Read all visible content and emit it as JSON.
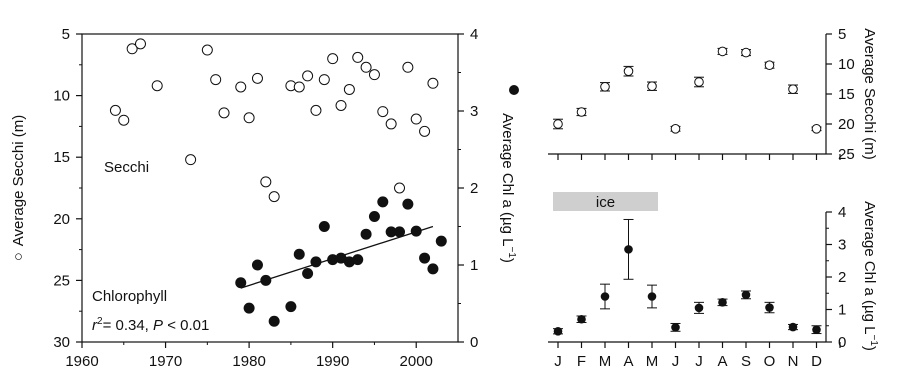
{
  "chart_data": [
    {
      "type": "scatter",
      "panel": "time-series",
      "xlim": [
        1960,
        2005
      ],
      "x_ticks": [
        1960,
        1970,
        1980,
        1990,
        2000
      ],
      "ylim_left": [
        30,
        5
      ],
      "y_ticks_left": [
        5,
        10,
        15,
        20,
        25,
        30
      ],
      "ylabel_left": "Average Secchi (m)",
      "ylabel_left_marker": "○",
      "ylim_right": [
        0,
        4
      ],
      "y_ticks_right": [
        0,
        1,
        2,
        3,
        4
      ],
      "ylabel_right": "Average Chl a (µg L",
      "ylabel_right_sup": "−1",
      "ylabel_right_close": ")",
      "ylabel_right_marker": "●",
      "annotations": {
        "secchi": "Secchi",
        "chlorophyll": "Chlorophyll",
        "stat_r": "r",
        "stat_r_sup": "2",
        "stat_mid": "= 0.34, ",
        "stat_p": "P",
        "stat_end": " < 0.01"
      },
      "series": [
        {
          "marker": "open-circle",
          "axis": "left",
          "x": [
            1964,
            1965,
            1966,
            1967,
            1969,
            1973,
            1975,
            1976,
            1977,
            1979,
            1980,
            1981,
            1982,
            1983,
            1985,
            1986,
            1987,
            1988,
            1989,
            1990,
            1991,
            1992,
            1993,
            1994,
            1995,
            1996,
            1997,
            1998,
            1999,
            2000,
            2001,
            2002
          ],
          "y": [
            11.2,
            12.0,
            6.2,
            5.8,
            9.2,
            15.2,
            6.3,
            8.7,
            11.4,
            9.3,
            11.8,
            8.6,
            17.0,
            18.2,
            9.2,
            9.3,
            8.4,
            11.2,
            8.7,
            7.0,
            10.8,
            9.5,
            6.9,
            7.7,
            8.3,
            11.3,
            12.3,
            17.5,
            7.7,
            11.9,
            12.9,
            9.0
          ]
        },
        {
          "marker": "filled-circle",
          "axis": "right",
          "x": [
            1979,
            1980,
            1981,
            1982,
            1983,
            1985,
            1986,
            1987,
            1988,
            1989,
            1990,
            1991,
            1992,
            1993,
            1994,
            1995,
            1996,
            1997,
            1998,
            1999,
            2000,
            2001,
            2002,
            2003
          ],
          "y": [
            0.77,
            0.44,
            1.0,
            0.8,
            0.27,
            0.46,
            1.14,
            0.89,
            1.04,
            1.5,
            1.07,
            1.09,
            1.04,
            1.07,
            1.4,
            1.63,
            1.82,
            1.43,
            1.43,
            1.79,
            1.44,
            1.09,
            0.95,
            1.31
          ]
        }
      ],
      "trendline": {
        "x": [
          1979,
          2002
        ],
        "y": [
          0.7,
          1.5
        ]
      }
    },
    {
      "type": "scatter",
      "panel": "monthly-secchi",
      "categories": [
        "J",
        "F",
        "M",
        "A",
        "M",
        "J",
        "J",
        "A",
        "S",
        "O",
        "N",
        "D"
      ],
      "ylim": [
        25,
        5
      ],
      "y_ticks": [
        5,
        10,
        15,
        20,
        25
      ],
      "ylabel": "Average Secchi (m)",
      "values": [
        20.0,
        18.0,
        13.8,
        11.2,
        13.7,
        20.8,
        13.0,
        7.9,
        8.1,
        10.2,
        14.2,
        20.8
      ],
      "errors": [
        0.8,
        0.6,
        0.7,
        0.8,
        0.7,
        0.4,
        0.8,
        0.5,
        0.5,
        0.5,
        0.7,
        0.3
      ]
    },
    {
      "type": "scatter",
      "panel": "monthly-chl",
      "categories": [
        "J",
        "F",
        "M",
        "A",
        "M",
        "J",
        "J",
        "A",
        "S",
        "O",
        "N",
        "D"
      ],
      "ylim": [
        0,
        4
      ],
      "y_ticks": [
        0,
        1,
        2,
        3,
        4
      ],
      "ylabel": "Average Chl a (µg L",
      "ylabel_sup": "−1",
      "ylabel_close": ")",
      "values": [
        0.33,
        0.7,
        1.4,
        2.85,
        1.4,
        0.45,
        1.05,
        1.22,
        1.45,
        1.06,
        0.46,
        0.38
      ],
      "errors": [
        0.08,
        0.1,
        0.38,
        0.92,
        0.35,
        0.12,
        0.17,
        0.1,
        0.12,
        0.16,
        0.08,
        0.12
      ],
      "ice": {
        "label": "ice",
        "from_month": 0,
        "to_month": 4
      }
    }
  ]
}
